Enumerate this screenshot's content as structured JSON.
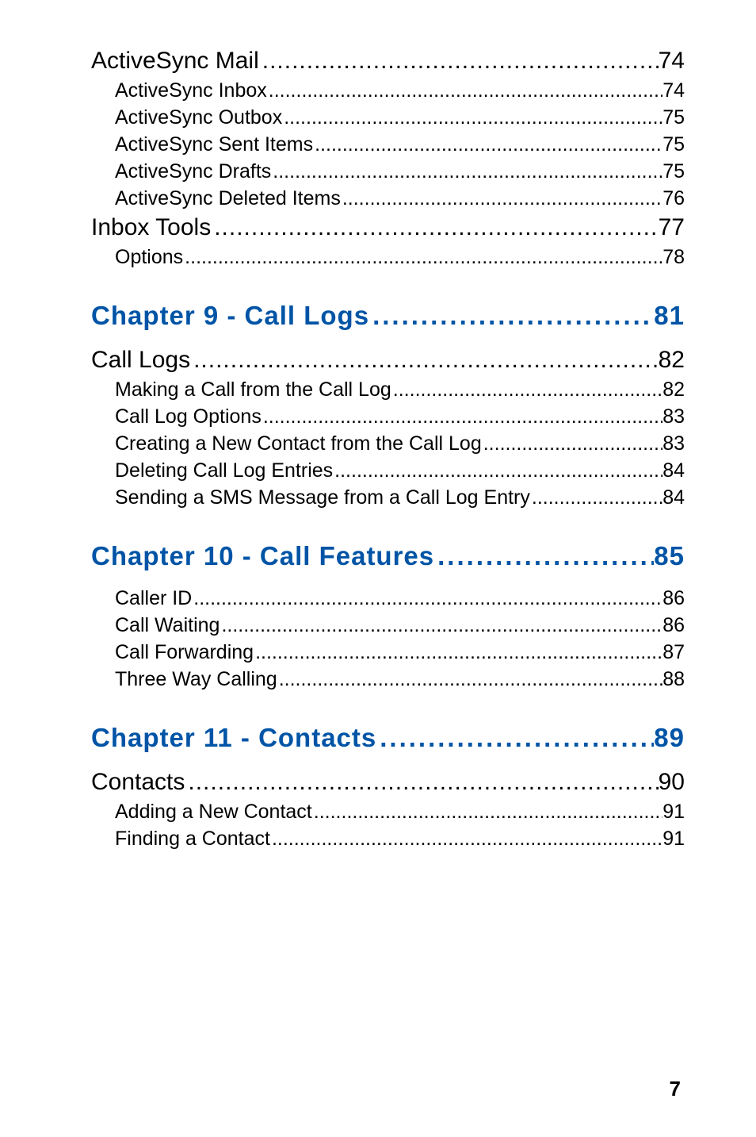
{
  "colors": {
    "chapter_color": "#0054a6",
    "text_color": "#000000",
    "background": "#ffffff"
  },
  "fonts": {
    "chapter_fontsize": 33,
    "h1_fontsize": 30,
    "h2_fontsize": 25,
    "pagenum_fontsize": 26
  },
  "toc": {
    "pre_sections": [
      {
        "label": "ActiveSync Mail",
        "page": "74",
        "sub": [
          {
            "label": "ActiveSync Inbox",
            "page": "74"
          },
          {
            "label": "ActiveSync Outbox",
            "page": "75"
          },
          {
            "label": "ActiveSync Sent Items",
            "page": "75"
          },
          {
            "label": "ActiveSync Drafts",
            "page": "75"
          },
          {
            "label": "ActiveSync Deleted Items",
            "page": "76"
          }
        ]
      },
      {
        "label": "Inbox Tools",
        "page": "77",
        "sub": [
          {
            "label": "Options",
            "page": "78"
          }
        ]
      }
    ],
    "chapters": [
      {
        "title": "Chapter 9 - Call Logs",
        "page": "81",
        "sections": [
          {
            "label": "Call Logs",
            "page": "82",
            "sub": [
              {
                "label": "Making a Call from the Call Log",
                "page": "82"
              },
              {
                "label": "Call Log Options",
                "page": "83"
              },
              {
                "label": "Creating a New Contact from the Call Log",
                "page": "83"
              },
              {
                "label": "Deleting Call Log Entries",
                "page": "84"
              },
              {
                "label": "Sending a SMS Message from a Call Log Entry",
                "page": "84"
              }
            ]
          }
        ]
      },
      {
        "title": "Chapter 10 - Call Features",
        "page": "85",
        "sections": [
          {
            "label": null,
            "page": null,
            "sub": [
              {
                "label": "Caller ID",
                "page": "86"
              },
              {
                "label": "Call Waiting",
                "page": "86"
              },
              {
                "label": "Call Forwarding",
                "page": "87"
              },
              {
                "label": "Three Way Calling",
                "page": "88"
              }
            ]
          }
        ]
      },
      {
        "title": "Chapter 11 - Contacts",
        "page": "89",
        "sections": [
          {
            "label": "Contacts",
            "page": "90",
            "sub": [
              {
                "label": "Adding a New Contact",
                "page": "91"
              },
              {
                "label": "Finding a Contact",
                "page": "91"
              }
            ]
          }
        ]
      }
    ]
  },
  "page_number": "7",
  "dot_fill_h1": " ............................................................................................",
  "dot_fill_h2": "  ....................................................................................................",
  "dot_fill_chapter": " ....................................."
}
